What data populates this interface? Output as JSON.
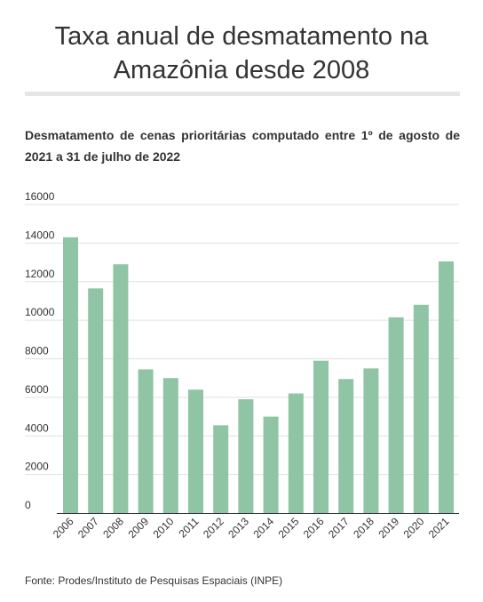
{
  "header": {
    "title_line1": "Taxa anual de desmatamento na",
    "title_line2": "Amazônia desde 2008",
    "subtitle": "Desmatamento de cenas prioritárias computado entre 1º de agosto de 2021 a 31 de julho de 2022"
  },
  "footer": {
    "source": "Fonte: Prodes/Instituto de Pesquisas Espaciais (INPE)"
  },
  "colors": {
    "bar": "#8fc4a4",
    "grid": "#e0e0e0",
    "axis": "#333333"
  },
  "chart_data": {
    "type": "bar",
    "title": "",
    "xlabel": "",
    "ylabel": "",
    "categories": [
      "2006",
      "2007",
      "2008",
      "2009",
      "2010",
      "2011",
      "2012",
      "2013",
      "2014",
      "2015",
      "2016",
      "2017",
      "2018",
      "2019",
      "2020",
      "2021"
    ],
    "values": [
      14300,
      11650,
      12900,
      7450,
      7000,
      6400,
      4550,
      5900,
      5000,
      6200,
      7900,
      6950,
      7500,
      10150,
      10800,
      13050
    ],
    "ylim": [
      0,
      16000
    ],
    "yticks": [
      0,
      2000,
      4000,
      6000,
      8000,
      10000,
      12000,
      14000,
      16000
    ],
    "grid": true,
    "legend": "none"
  }
}
